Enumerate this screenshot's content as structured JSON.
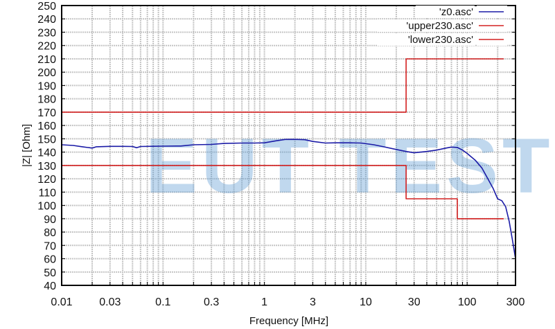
{
  "chart_data": {
    "type": "line",
    "title": "",
    "xlabel": "Frequency [MHz]",
    "ylabel": "|Z| [Ohm]",
    "xscale": "log",
    "xlim": [
      0.01,
      300
    ],
    "ylim": [
      40,
      250
    ],
    "grid": true,
    "legend_position": "top-right",
    "x_ticks": [
      {
        "value": 0.01,
        "label": "0.01"
      },
      {
        "value": 0.03,
        "label": "0.03"
      },
      {
        "value": 0.1,
        "label": "0.1"
      },
      {
        "value": 0.3,
        "label": "0.3"
      },
      {
        "value": 1,
        "label": "1"
      },
      {
        "value": 3,
        "label": "3"
      },
      {
        "value": 10,
        "label": "10"
      },
      {
        "value": 30,
        "label": "30"
      },
      {
        "value": 100,
        "label": "100"
      },
      {
        "value": 300,
        "label": "300"
      }
    ],
    "y_ticks": [
      40,
      50,
      60,
      70,
      80,
      90,
      100,
      110,
      120,
      130,
      140,
      150,
      160,
      170,
      180,
      190,
      200,
      210,
      220,
      230,
      240,
      250
    ],
    "watermark": "EUT TEST",
    "series": [
      {
        "name": "'z0.asc'",
        "color": "#1a1aa6",
        "points": [
          [
            0.01,
            145.5
          ],
          [
            0.013,
            145
          ],
          [
            0.016,
            144
          ],
          [
            0.02,
            143
          ],
          [
            0.022,
            144
          ],
          [
            0.03,
            144.3
          ],
          [
            0.04,
            144.3
          ],
          [
            0.05,
            144.2
          ],
          [
            0.055,
            143.3
          ],
          [
            0.06,
            144.2
          ],
          [
            0.08,
            144.4
          ],
          [
            0.1,
            144.5
          ],
          [
            0.15,
            144.6
          ],
          [
            0.2,
            145.5
          ],
          [
            0.3,
            145.8
          ],
          [
            0.4,
            146.5
          ],
          [
            0.6,
            146.8
          ],
          [
            0.8,
            146.8
          ],
          [
            1.0,
            147
          ],
          [
            1.3,
            148.5
          ],
          [
            1.6,
            149.5
          ],
          [
            2.0,
            149.6
          ],
          [
            2.5,
            149.3
          ],
          [
            3.0,
            148
          ],
          [
            4.0,
            146.8
          ],
          [
            5.0,
            147
          ],
          [
            7.0,
            147
          ],
          [
            9.0,
            146.8
          ],
          [
            12.0,
            145.5
          ],
          [
            15.0,
            144
          ],
          [
            20.0,
            142
          ],
          [
            25.0,
            140.5
          ],
          [
            30.0,
            139.5
          ],
          [
            40.0,
            140.5
          ],
          [
            50.0,
            141.5
          ],
          [
            60.0,
            142.8
          ],
          [
            70.0,
            143.8
          ],
          [
            80.0,
            143.5
          ],
          [
            90.0,
            141.5
          ],
          [
            100.0,
            139
          ],
          [
            120.0,
            134
          ],
          [
            140.0,
            128
          ],
          [
            160.0,
            120
          ],
          [
            180.0,
            113
          ],
          [
            200.0,
            105
          ],
          [
            220.0,
            103.5
          ],
          [
            240.0,
            99
          ],
          [
            260.0,
            88
          ],
          [
            280.0,
            74
          ],
          [
            300.0,
            60
          ]
        ]
      },
      {
        "name": "'upper230.asc'",
        "color": "#d42020",
        "points": [
          [
            0.01,
            170
          ],
          [
            25,
            170
          ],
          [
            25,
            210
          ],
          [
            230,
            210
          ]
        ]
      },
      {
        "name": "'lower230.asc'",
        "color": "#d42020",
        "points": [
          [
            0.01,
            130
          ],
          [
            25,
            130
          ],
          [
            25,
            105
          ],
          [
            80,
            105
          ],
          [
            80,
            90
          ],
          [
            230,
            90
          ]
        ]
      }
    ]
  }
}
